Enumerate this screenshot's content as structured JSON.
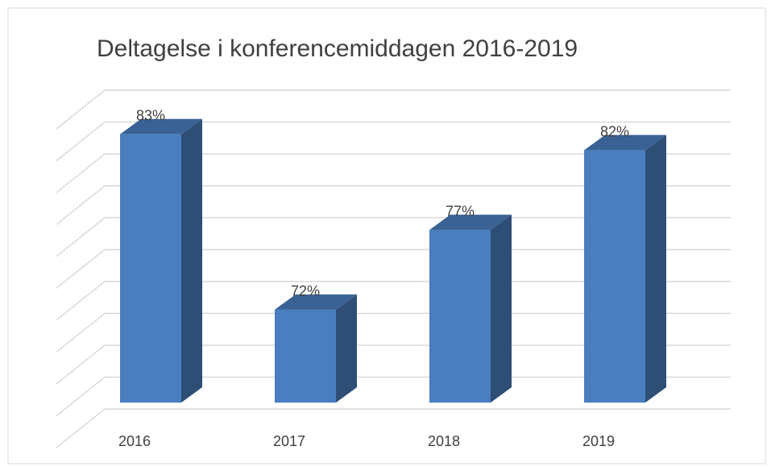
{
  "chart_data": {
    "type": "bar3d",
    "title": "Deltagelse i konferencemiddagen 2016-2019",
    "categories": [
      "2016",
      "2017",
      "2018",
      "2019"
    ],
    "values": [
      83,
      72,
      77,
      82
    ],
    "value_labels": [
      "83%",
      "72%",
      "77%",
      "82%"
    ],
    "color": "#4a7ebf",
    "ylim": [
      64,
      84
    ],
    "yticks": [
      64,
      66,
      68,
      70,
      72,
      74,
      76,
      78,
      80,
      82,
      84
    ],
    "grid": true
  }
}
